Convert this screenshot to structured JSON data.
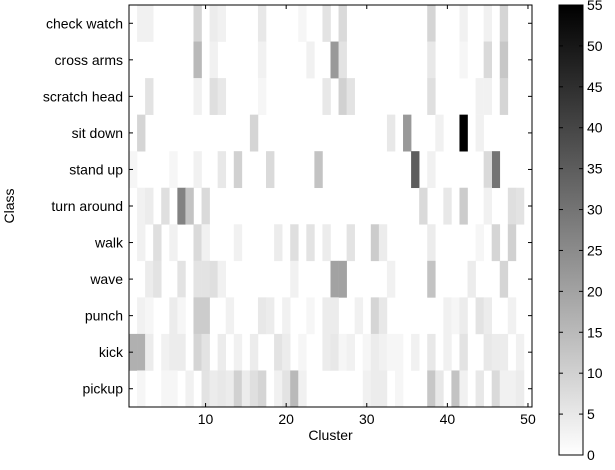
{
  "chart_data": {
    "type": "heatmap",
    "title": "",
    "xlabel": "Cluster",
    "ylabel": "Class",
    "classes": [
      "check watch",
      "cross arms",
      "scratch head",
      "sit down",
      "stand up",
      "turn around",
      "walk",
      "wave",
      "punch",
      "kick",
      "pickup"
    ],
    "clusters": [
      1,
      50
    ],
    "xlim": [
      0.5,
      50.5
    ],
    "xticks": [
      10,
      20,
      30,
      40,
      50
    ],
    "colorbar": {
      "min": 0,
      "max": 55,
      "ticks": [
        0,
        5,
        10,
        15,
        20,
        25,
        30,
        35,
        40,
        45,
        50,
        55
      ],
      "colormap": "gray-reversed"
    },
    "cells": [
      [
        [
          2,
          3
        ],
        [
          3,
          3
        ],
        [
          9,
          9
        ],
        [
          11,
          4
        ],
        [
          12,
          3
        ],
        [
          17,
          5
        ],
        [
          22,
          2
        ],
        [
          25,
          6
        ],
        [
          27,
          8
        ],
        [
          38,
          9
        ],
        [
          42,
          3
        ],
        [
          45,
          3
        ],
        [
          47,
          9
        ]
      ],
      [
        [
          9,
          15
        ],
        [
          11,
          3
        ],
        [
          17,
          3
        ],
        [
          23,
          3
        ],
        [
          26,
          22
        ],
        [
          27,
          6
        ],
        [
          38,
          5
        ],
        [
          42,
          2
        ],
        [
          45,
          8
        ],
        [
          47,
          12
        ]
      ],
      [
        [
          3,
          6
        ],
        [
          9,
          3
        ],
        [
          11,
          7
        ],
        [
          12,
          5
        ],
        [
          17,
          2
        ],
        [
          25,
          5
        ],
        [
          27,
          10
        ],
        [
          28,
          6
        ],
        [
          38,
          7
        ],
        [
          44,
          3
        ],
        [
          45,
          3
        ],
        [
          47,
          9
        ]
      ],
      [
        [
          2,
          9
        ],
        [
          16,
          9
        ],
        [
          33,
          5
        ],
        [
          35,
          22
        ],
        [
          39,
          3
        ],
        [
          42,
          55
        ],
        [
          44,
          3
        ]
      ],
      [
        [
          1,
          2
        ],
        [
          6,
          2
        ],
        [
          9,
          3
        ],
        [
          12,
          5
        ],
        [
          14,
          10
        ],
        [
          18,
          8
        ],
        [
          24,
          13
        ],
        [
          36,
          35
        ],
        [
          38,
          3
        ],
        [
          46,
          30
        ],
        [
          45,
          8
        ]
      ],
      [
        [
          2,
          3
        ],
        [
          3,
          4
        ],
        [
          5,
          7
        ],
        [
          7,
          27
        ],
        [
          8,
          13
        ],
        [
          10,
          8
        ],
        [
          37,
          8
        ],
        [
          40,
          5
        ],
        [
          42,
          11
        ],
        [
          45,
          3
        ],
        [
          48,
          7
        ],
        [
          49,
          6
        ]
      ],
      [
        [
          2,
          3
        ],
        [
          4,
          7
        ],
        [
          6,
          3
        ],
        [
          9,
          8
        ],
        [
          10,
          3
        ],
        [
          14,
          3
        ],
        [
          19,
          4
        ],
        [
          21,
          7
        ],
        [
          23,
          6
        ],
        [
          25,
          4
        ],
        [
          28,
          6
        ],
        [
          31,
          11
        ],
        [
          32,
          4
        ],
        [
          38,
          4
        ],
        [
          44,
          2
        ],
        [
          46,
          9
        ],
        [
          48,
          10
        ]
      ],
      [
        [
          3,
          4
        ],
        [
          4,
          6
        ],
        [
          7,
          6
        ],
        [
          9,
          6
        ],
        [
          10,
          6
        ],
        [
          11,
          7
        ],
        [
          12,
          3
        ],
        [
          21,
          3
        ],
        [
          26,
          20
        ],
        [
          27,
          20
        ],
        [
          33,
          3
        ],
        [
          38,
          13
        ],
        [
          43,
          4
        ],
        [
          47,
          9
        ]
      ],
      [
        [
          2,
          3
        ],
        [
          3,
          2
        ],
        [
          6,
          4
        ],
        [
          7,
          2
        ],
        [
          9,
          11
        ],
        [
          10,
          11
        ],
        [
          13,
          3
        ],
        [
          17,
          5
        ],
        [
          18,
          4
        ],
        [
          20,
          3
        ],
        [
          23,
          2
        ],
        [
          25,
          4
        ],
        [
          26,
          4
        ],
        [
          29,
          3
        ],
        [
          31,
          9
        ],
        [
          32,
          5
        ],
        [
          40,
          3
        ],
        [
          41,
          2
        ],
        [
          42,
          4
        ],
        [
          44,
          6
        ],
        [
          45,
          4
        ],
        [
          48,
          3
        ]
      ],
      [
        [
          1,
          17
        ],
        [
          2,
          17
        ],
        [
          3,
          4
        ],
        [
          5,
          3
        ],
        [
          6,
          4
        ],
        [
          7,
          4
        ],
        [
          9,
          9
        ],
        [
          10,
          6
        ],
        [
          12,
          4
        ],
        [
          14,
          3
        ],
        [
          16,
          4
        ],
        [
          19,
          6
        ],
        [
          20,
          4
        ],
        [
          22,
          2
        ],
        [
          25,
          4
        ],
        [
          26,
          5
        ],
        [
          27,
          2
        ],
        [
          28,
          3
        ],
        [
          30,
          2
        ],
        [
          31,
          4
        ],
        [
          32,
          3
        ],
        [
          33,
          2
        ],
        [
          34,
          2
        ],
        [
          36,
          3
        ],
        [
          38,
          5
        ],
        [
          40,
          3
        ],
        [
          42,
          6
        ],
        [
          45,
          5
        ],
        [
          46,
          4
        ],
        [
          47,
          4
        ],
        [
          49,
          3
        ]
      ],
      [
        [
          2,
          2
        ],
        [
          5,
          2
        ],
        [
          6,
          2
        ],
        [
          8,
          3
        ],
        [
          10,
          6
        ],
        [
          11,
          4
        ],
        [
          12,
          5
        ],
        [
          13,
          4
        ],
        [
          14,
          10
        ],
        [
          15,
          4
        ],
        [
          16,
          7
        ],
        [
          17,
          9
        ],
        [
          19,
          3
        ],
        [
          20,
          6
        ],
        [
          21,
          15
        ],
        [
          22,
          3
        ],
        [
          30,
          3
        ],
        [
          31,
          4
        ],
        [
          32,
          4
        ],
        [
          34,
          2
        ],
        [
          38,
          12
        ],
        [
          39,
          5
        ],
        [
          41,
          13
        ],
        [
          42,
          3
        ],
        [
          44,
          5
        ],
        [
          46,
          8
        ],
        [
          47,
          3
        ],
        [
          48,
          3
        ],
        [
          49,
          4
        ]
      ]
    ]
  }
}
